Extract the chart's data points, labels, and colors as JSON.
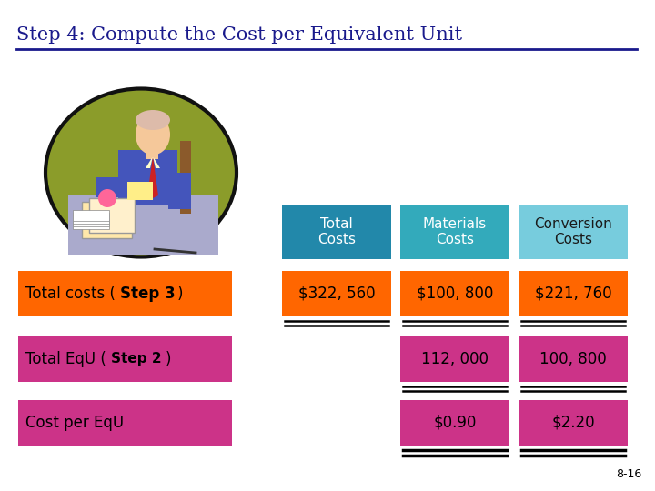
{
  "title": "Step 4: Compute the Cost per Equivalent Unit",
  "title_color": "#1A1A8C",
  "title_fontsize": 15,
  "background_color": "#FFFFFF",
  "slide_number": "8-16",
  "header_row": {
    "col1": {
      "text": "Total\nCosts",
      "bg": "#2288AA",
      "text_color": "#FFFFFF"
    },
    "col2": {
      "text": "Materials\nCosts",
      "bg": "#33AABB",
      "text_color": "#FFFFFF"
    },
    "col3": {
      "text": "Conversion\nCosts",
      "bg": "#77CCDD",
      "text_color": "#1A1A1A"
    }
  },
  "row1": {
    "label_normal": "Total costs (",
    "label_bold": "Step 3",
    "label_end": ")",
    "label_bg": "#FF6600",
    "label_text_color": "#000000",
    "col1": {
      "text": "$322, 560",
      "bg": "#FF6600",
      "text_color": "#000000"
    },
    "col2": {
      "text": "$100, 800",
      "bg": "#FF6600",
      "text_color": "#000000"
    },
    "col3": {
      "text": "$221, 760",
      "bg": "#FF6600",
      "text_color": "#000000"
    }
  },
  "row2": {
    "label_normal": "Total EqU (",
    "label_bold": "Step 2",
    "label_end": ")",
    "label_bg": "#CC3388",
    "label_text_color": "#000000",
    "col2": {
      "text": "112, 000",
      "bg": "#CC3388",
      "text_color": "#000000"
    },
    "col3": {
      "text": "100, 800",
      "bg": "#CC3388",
      "text_color": "#000000"
    }
  },
  "row3": {
    "label": "Cost per EqU",
    "label_bg": "#CC3388",
    "label_text_color": "#000000",
    "col2": {
      "text": "$0.90",
      "bg": "#CC3388",
      "text_color": "#000000"
    },
    "col3": {
      "text": "$2.20",
      "bg": "#CC3388",
      "text_color": "#000000"
    }
  },
  "circle_bg": "#8B9C2A",
  "circle_outline": "#111111",
  "desk_color": "#AAAACC",
  "jacket_color": "#4455BB",
  "skin_color": "#F5C89A",
  "tie_color": "#CC2222",
  "paper_color": "#FFDD88",
  "shirt_color": "#FFFFCC"
}
